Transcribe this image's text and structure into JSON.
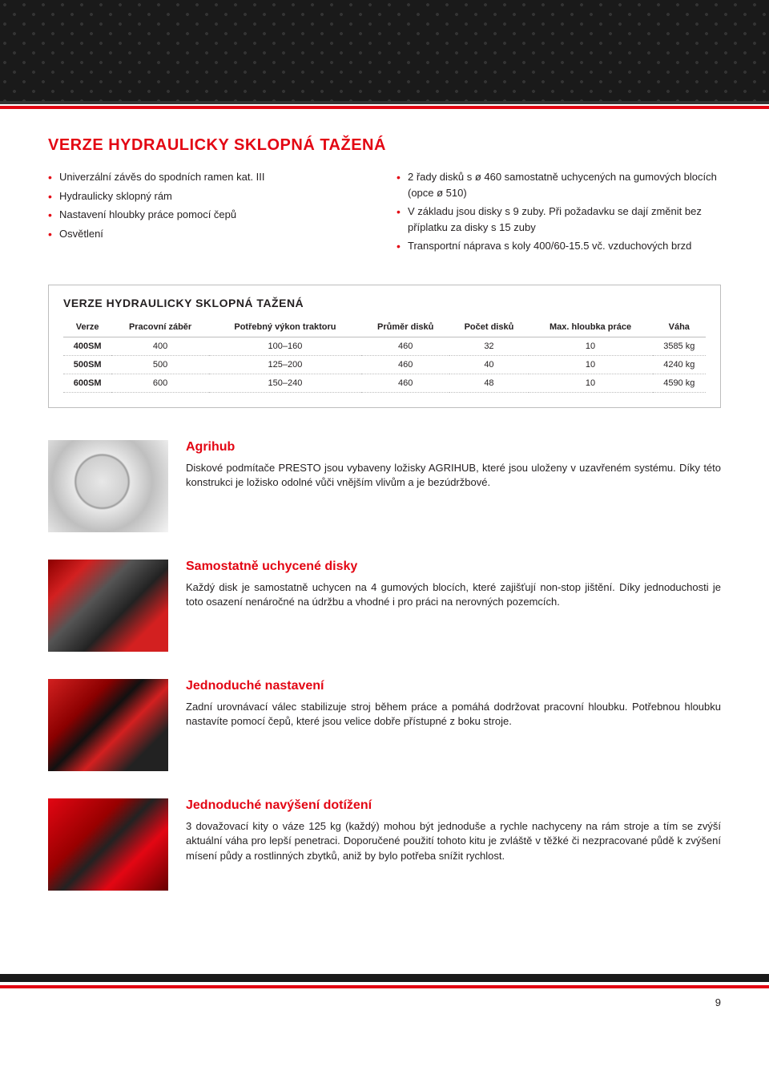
{
  "header": {
    "title": "VERZE HYDRAULICKY SKLOPNÁ TAŽENÁ"
  },
  "bullets_left": [
    "Univerzální závěs do spodních ramen kat. III",
    "Hydraulicky sklopný rám",
    "Nastavení hloubky práce pomocí čepů",
    "Osvětlení"
  ],
  "bullets_right": [
    "2 řady disků s ø 460 samostatně uchycených na gumových blocích (opce ø 510)",
    "V základu jsou disky s 9 zuby. Při požadavku se dají změnit bez příplatku za disky s 15 zuby",
    "Transportní náprava s koly 400/60-15.5 vč. vzduchových brzd"
  ],
  "table": {
    "title": "VERZE HYDRAULICKY SKLOPNÁ TAŽENÁ",
    "columns": [
      "Verze",
      "Pracovní záběr",
      "Potřebný výkon traktoru",
      "Průměr disků",
      "Počet disků",
      "Max. hloubka práce",
      "Váha"
    ],
    "rows": [
      [
        "400SM",
        "400",
        "100–160",
        "460",
        "32",
        "10",
        "3585 kg"
      ],
      [
        "500SM",
        "500",
        "125–200",
        "460",
        "40",
        "10",
        "4240 kg"
      ],
      [
        "600SM",
        "600",
        "150–240",
        "460",
        "48",
        "10",
        "4590 kg"
      ]
    ]
  },
  "features": [
    {
      "title": "Agrihub",
      "body": "Diskové podmítače PRESTO jsou vybaveny ložisky AGRIHUB, které jsou uloženy v uzavřeném systému. Díky této konstrukci je ložisko odolné vůči vnějším vlivům a je bezúdržbové.",
      "img_class": "img-agrihub"
    },
    {
      "title": "Samostatně uchycené disky",
      "body": "Každý disk je samostatně uchycen na 4 gumových blocích, které zajišťují non-stop jištění. Díky jednoduchosti je toto osazení nenáročné na údržbu a vhodné i pro práci na nerovných pozemcích.",
      "img_class": "img-disky"
    },
    {
      "title": "Jednoduché nastavení",
      "body": "Zadní urovnávací válec stabilizuje stroj během práce a pomáhá dodržovat pracovní hloubku. Potřebnou hloubku nastavíte pomocí čepů, které jsou velice dobře přístupné z boku stroje.",
      "img_class": "img-nastaveni"
    },
    {
      "title": "Jednoduché navýšení dotížení",
      "body": "3 dovažovací kity o váze 125 kg (každý) mohou být jednoduše a rychle nachyceny na rám stroje a tím se zvýší aktuální váha pro lepší penetraci. Doporučené použití tohoto kitu je zvláště v těžké či nezpracované půdě k zvýšení mísení půdy a rostlinných zbytků, aniž by bylo potřeba snížit rychlost.",
      "img_class": "img-dotizeni"
    }
  ],
  "page_number": "9"
}
